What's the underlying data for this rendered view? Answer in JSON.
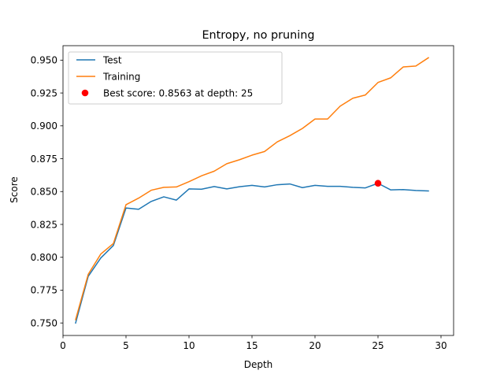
{
  "chart_data": {
    "type": "line",
    "title": "Entropy, no pruning",
    "xlabel": "Depth",
    "ylabel": "Score",
    "xlim": [
      0.0,
      31.0
    ],
    "ylim": [
      0.7405,
      0.961
    ],
    "xticks": [
      0,
      5,
      10,
      15,
      20,
      25,
      30
    ],
    "yticks": [
      0.75,
      0.775,
      0.8,
      0.825,
      0.85,
      0.875,
      0.9,
      0.925,
      0.95
    ],
    "ytick_labels": [
      "0.750",
      "0.775",
      "0.800",
      "0.825",
      "0.850",
      "0.875",
      "0.900",
      "0.925",
      "0.950"
    ],
    "legend_position": "upper-left",
    "x": [
      1,
      2,
      3,
      4,
      5,
      6,
      7,
      8,
      9,
      10,
      11,
      12,
      13,
      14,
      15,
      16,
      17,
      18,
      19,
      20,
      21,
      22,
      23,
      24,
      25,
      26,
      27,
      28,
      29
    ],
    "series": [
      {
        "name": "Test",
        "color": "#1f77b4",
        "values": [
          0.75,
          0.7855,
          0.7995,
          0.809,
          0.8375,
          0.8365,
          0.8425,
          0.846,
          0.8435,
          0.852,
          0.8518,
          0.8538,
          0.852,
          0.8537,
          0.8547,
          0.8535,
          0.8552,
          0.8558,
          0.853,
          0.8547,
          0.854,
          0.854,
          0.8532,
          0.8528,
          0.8563,
          0.8513,
          0.8515,
          0.8508,
          0.8505
        ]
      },
      {
        "name": "Training",
        "color": "#ff7f0e",
        "values": [
          0.7525,
          0.787,
          0.8025,
          0.8105,
          0.84,
          0.845,
          0.851,
          0.8532,
          0.8535,
          0.8575,
          0.862,
          0.8655,
          0.8712,
          0.8742,
          0.8777,
          0.8805,
          0.8878,
          0.8925,
          0.898,
          0.9052,
          0.9052,
          0.915,
          0.921,
          0.9235,
          0.933,
          0.9365,
          0.9448,
          0.9455,
          0.9518
        ]
      }
    ],
    "best_point": {
      "label": "Best score: 0.8563 at depth: 25",
      "x": 25,
      "y": 0.8563,
      "color": "#ff0000"
    }
  }
}
